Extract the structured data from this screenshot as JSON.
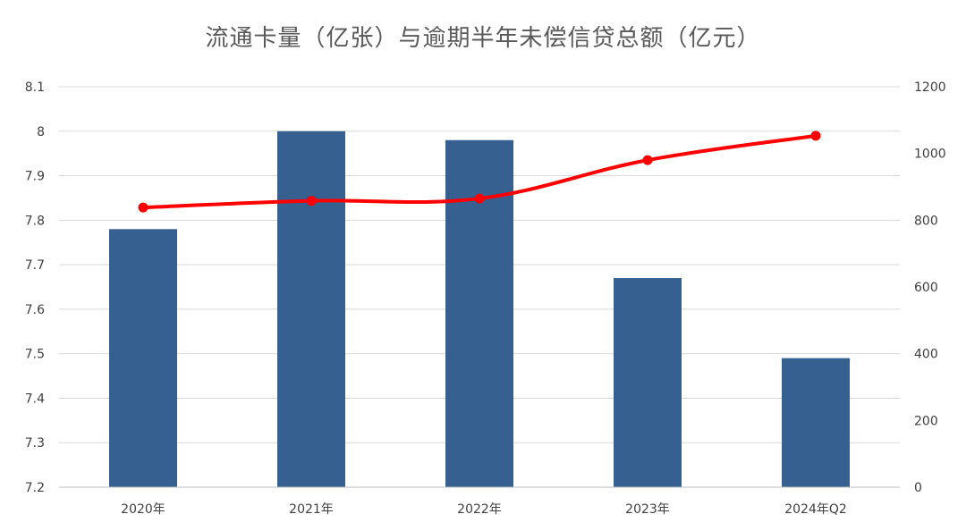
{
  "colors": {
    "bar": "#36608F",
    "line": "#FF0000",
    "grid": "#D9D9D9",
    "axis": "#BFBFBF",
    "title": "#595959",
    "tick_text": "#404040"
  },
  "chart_data": {
    "type": "bar",
    "title": "流通卡量（亿张）与逾期半年未偿信贷总额（亿元）",
    "categories": [
      "2020年",
      "2021年",
      "2022年",
      "2023年",
      "2024年Q2"
    ],
    "series": [
      {
        "type": "bar",
        "axis": "left",
        "values": [
          7.78,
          8.0,
          7.98,
          7.67,
          7.49
        ]
      },
      {
        "type": "line",
        "axis": "right",
        "values": [
          838,
          858,
          865,
          980,
          1053
        ]
      }
    ],
    "y_left": {
      "min": 7.2,
      "max": 8.1,
      "ticks": [
        "7.2",
        "7.3",
        "7.4",
        "7.5",
        "7.6",
        "7.7",
        "7.8",
        "7.9",
        "8",
        "8.1"
      ]
    },
    "y_right": {
      "min": 0,
      "max": 1200,
      "ticks": [
        "0",
        "200",
        "400",
        "600",
        "800",
        "1000",
        "1200"
      ]
    },
    "grid": true,
    "legend": "none"
  }
}
